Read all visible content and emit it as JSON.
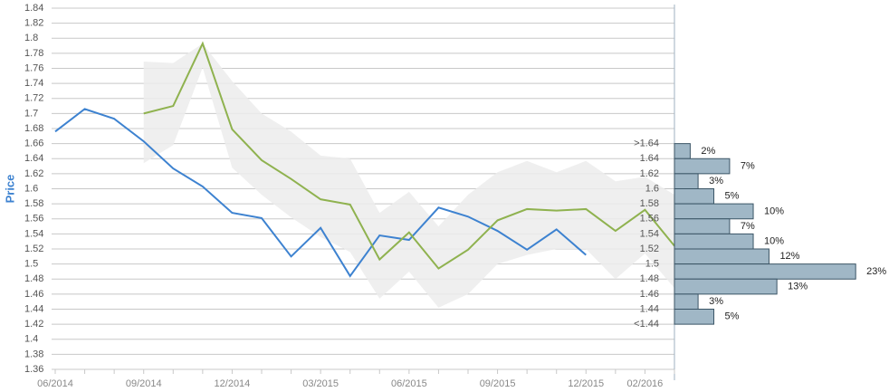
{
  "chart_data": [
    {
      "type": "line",
      "y_label": "Price",
      "categories": [
        "06/2014",
        null,
        null,
        "09/2014",
        null,
        null,
        "12/2014",
        null,
        null,
        "03/2015",
        null,
        null,
        "06/2015",
        null,
        null,
        "09/2015",
        null,
        null,
        "12/2015",
        null,
        "02/2016",
        null
      ],
      "ylim": [
        1.36,
        1.84
      ],
      "yticks": [
        1.36,
        1.38,
        1.4,
        1.42,
        1.44,
        1.46,
        1.48,
        1.5,
        1.52,
        1.54,
        1.56,
        1.58,
        1.6,
        1.62,
        1.64,
        1.66,
        1.68,
        1.7,
        1.72,
        1.74,
        1.76,
        1.78,
        1.8,
        1.82,
        1.84
      ],
      "grid": true,
      "band": {
        "color": "#ececec",
        "upper": [
          null,
          null,
          null,
          1.769,
          1.767,
          1.793,
          1.743,
          1.7,
          1.676,
          1.644,
          1.64,
          1.568,
          1.596,
          1.55,
          1.592,
          1.622,
          1.637,
          1.622,
          1.637,
          1.61,
          1.616,
          1.592
        ],
        "lower": [
          null,
          null,
          null,
          1.634,
          1.658,
          1.761,
          1.628,
          1.592,
          1.562,
          1.536,
          1.516,
          1.454,
          1.49,
          1.442,
          1.46,
          1.5,
          1.512,
          1.52,
          1.52,
          1.48,
          1.514,
          1.468
        ]
      },
      "series": [
        {
          "color": "#3d82d0",
          "values": [
            1.676,
            1.706,
            1.693,
            1.663,
            1.627,
            1.603,
            1.568,
            1.561,
            1.51,
            1.548,
            1.484,
            1.538,
            1.532,
            1.575,
            1.563,
            1.544,
            1.519,
            1.546,
            1.512,
            null,
            null,
            null
          ]
        },
        {
          "color": "#8fb24f",
          "values": [
            null,
            null,
            null,
            1.7,
            1.71,
            1.793,
            1.679,
            1.638,
            1.613,
            1.586,
            1.579,
            1.506,
            1.542,
            1.494,
            1.519,
            1.558,
            1.573,
            1.571,
            1.573,
            1.544,
            1.572,
            1.524
          ]
        }
      ]
    },
    {
      "type": "histogram",
      "bins": [
        {
          "value": 1.66,
          "label": ">1.64"
        },
        1.64,
        1.62,
        1.6,
        1.58,
        1.56,
        1.54,
        1.52,
        1.5,
        1.48,
        1.46,
        1.44,
        {
          "value": 1.42,
          "label": "<1.44"
        }
      ],
      "values": [
        2,
        7,
        3,
        5,
        10,
        7,
        10,
        12,
        23,
        13,
        3,
        5
      ],
      "value_labels": [
        "2%",
        "7%",
        "3%",
        "5%",
        "10%",
        "7%",
        "10%",
        "12%",
        "23%",
        "13%",
        "3%",
        "5%"
      ],
      "color": "#a0b7c6",
      "xlim": [
        0,
        27
      ]
    }
  ]
}
